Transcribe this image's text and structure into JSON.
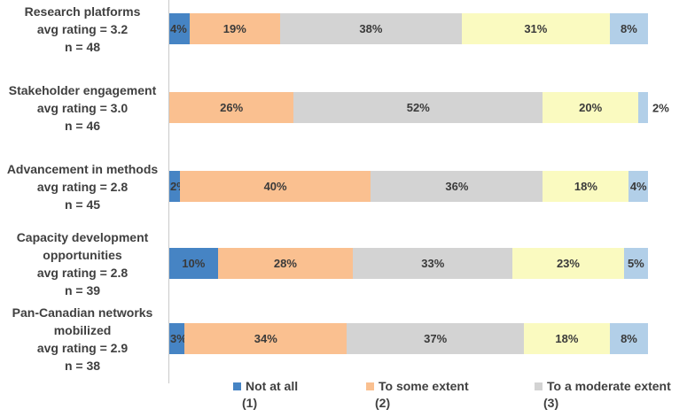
{
  "chart_data": {
    "type": "bar",
    "variant": "horizontal-stacked-100",
    "unit": "%",
    "xlim": [
      0,
      100
    ],
    "grid": false,
    "legend_position": "bottom",
    "series_keys": [
      "not-at-all",
      "to-some-extent",
      "to-a-moderate-extent",
      "series-4",
      "series-5"
    ],
    "series_colors": [
      "#4684c4",
      "#fac090",
      "#d3d3d3",
      "#fafac0",
      "#b2cfe8"
    ],
    "axis_line_color": "#c9c9c9",
    "legend": [
      {
        "label": "Not at all",
        "scale": "(1)",
        "color": "#4684c4"
      },
      {
        "label": "To some extent",
        "scale": "(2)",
        "color": "#fac090"
      },
      {
        "label": "To a moderate extent",
        "scale": "(3)",
        "color": "#d3d3d3"
      }
    ],
    "rows": [
      {
        "label_lines": [
          "Research platforms",
          "avg rating = 3.2",
          "n = 48"
        ],
        "values": [
          4,
          19,
          38,
          31,
          8
        ],
        "labels": [
          "4%",
          "19%",
          "38%",
          "31%",
          "8%"
        ]
      },
      {
        "label_lines": [
          "Stakeholder engagement",
          "avg rating = 3.0",
          "n = 46"
        ],
        "values": [
          0,
          26,
          52,
          20,
          2
        ],
        "labels": [
          "",
          "26%",
          "52%",
          "20%",
          "2%"
        ],
        "last_label_outside": true
      },
      {
        "label_lines": [
          "Advancement in methods",
          "avg rating = 2.8",
          "n = 45"
        ],
        "values": [
          2,
          40,
          36,
          18,
          4
        ],
        "labels": [
          "2%",
          "40%",
          "36%",
          "18%",
          "4%"
        ]
      },
      {
        "label_lines": [
          "Capacity development",
          "opportunities",
          "avg rating = 2.8",
          "n = 39"
        ],
        "values": [
          10,
          28,
          33,
          23,
          5
        ],
        "labels": [
          "10%",
          "28%",
          "33%",
          "23%",
          "5%"
        ]
      },
      {
        "label_lines": [
          "Pan-Canadian networks",
          "mobilized",
          "avg rating = 2.9",
          "n = 38"
        ],
        "values": [
          3,
          34,
          37,
          18,
          8
        ],
        "labels": [
          "3%",
          "34%",
          "37%",
          "18%",
          "8%"
        ]
      }
    ]
  }
}
